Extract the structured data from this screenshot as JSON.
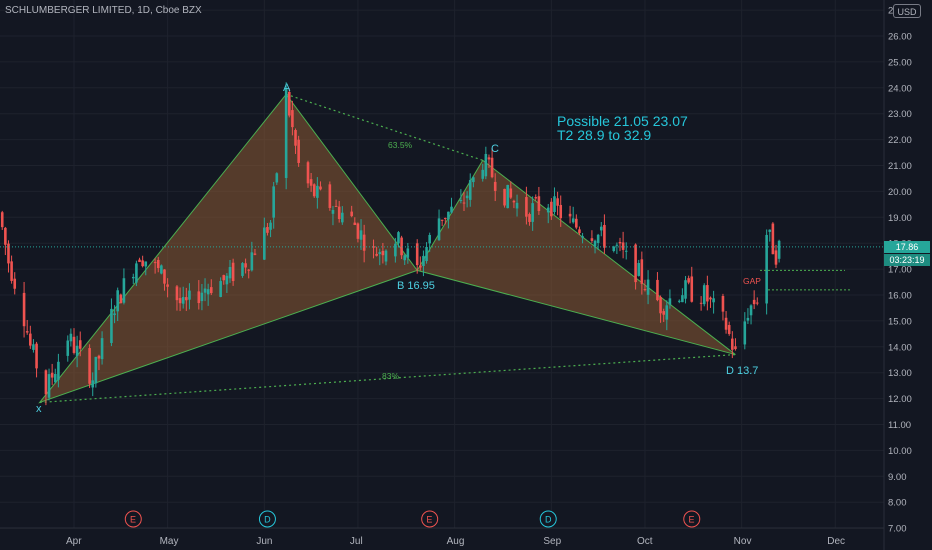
{
  "header": {
    "title": "SCHLUMBERGER LIMITED, 1D, Cboe BZX",
    "currency_label": "USD"
  },
  "price_axis": {
    "ticks": [
      "7.00",
      "8.00",
      "9.00",
      "10.00",
      "11.00",
      "12.00",
      "13.00",
      "14.00",
      "15.00",
      "16.00",
      "17.00",
      "18.00",
      "19.00",
      "20.00",
      "21.00",
      "22.00",
      "23.00",
      "24.00",
      "25.00",
      "26.00",
      "2"
    ],
    "last_price_label": "17.86",
    "countdown_label": "03:23:19"
  },
  "time_axis": {
    "ticks": [
      "Apr",
      "May",
      "Jun",
      "Jul",
      "Aug",
      "Sep",
      "Oct",
      "Nov",
      "Dec"
    ]
  },
  "events": [
    {
      "label": "E",
      "kind": "earnings"
    },
    {
      "label": "D",
      "kind": "dividend"
    },
    {
      "label": "E",
      "kind": "earnings"
    },
    {
      "label": "D",
      "kind": "dividend"
    },
    {
      "label": "E",
      "kind": "earnings"
    },
    {
      "label": "D",
      "kind": "dividend"
    }
  ],
  "pattern": {
    "points": [
      {
        "label": "X",
        "price": 11.85
      },
      {
        "label": "A",
        "price": 23.75
      },
      {
        "label": "B 16.95",
        "price": 16.95
      },
      {
        "label": "C",
        "price": 21.2
      },
      {
        "label": "D 13.7",
        "price": 13.7
      }
    ],
    "ratio_ac": "63.5%",
    "ratio_xd": "83%"
  },
  "annotations": {
    "line1": "Possible   21.05  23.07",
    "line2": "T2   28.9  to  32.9",
    "gap": "GAP"
  },
  "colors": {
    "background": "#131722",
    "bull": "#26a69a",
    "bear": "#ef5350",
    "pattern_line": "#4caf50",
    "pattern_fill": "#8d5a33",
    "note": "#26c6da"
  },
  "chart_data": {
    "type": "candlestick",
    "title": "SCHLUMBERGER LIMITED, 1D, Cboe BZX",
    "ylim": [
      7,
      27
    ],
    "price_samples": [
      {
        "x": "Mar 08",
        "price": 19.2
      },
      {
        "x": "Mar 11",
        "price": 17.3
      },
      {
        "x": "Mar 15",
        "price": 15.8
      },
      {
        "x": "Mar 18",
        "price": 14.0
      },
      {
        "x": "Mar 23",
        "price": 12.3
      },
      {
        "x": "Mar 30",
        "price": 14.4
      },
      {
        "x": "Apr 07",
        "price": 12.8
      },
      {
        "x": "Apr 14",
        "price": 15.6
      },
      {
        "x": "Apr 22",
        "price": 17.6
      },
      {
        "x": "Apr 29",
        "price": 16.8
      },
      {
        "x": "May 06",
        "price": 15.5
      },
      {
        "x": "May 13",
        "price": 16.3
      },
      {
        "x": "May 20",
        "price": 16.6
      },
      {
        "x": "May 27",
        "price": 17.4
      },
      {
        "x": "Jun 03",
        "price": 18.8
      },
      {
        "x": "Jun 08",
        "price": 23.75
      },
      {
        "x": "Jun 12",
        "price": 21.0
      },
      {
        "x": "Jun 16",
        "price": 20.0
      },
      {
        "x": "Jun 22",
        "price": 19.5
      },
      {
        "x": "Jun 29",
        "price": 18.9
      },
      {
        "x": "Jul 06",
        "price": 17.6
      },
      {
        "x": "Jul 13",
        "price": 18.2
      },
      {
        "x": "Jul 20",
        "price": 17.0
      },
      {
        "x": "Jul 27",
        "price": 19.0
      },
      {
        "x": "Aug 03",
        "price": 19.4
      },
      {
        "x": "Aug 10",
        "price": 21.2
      },
      {
        "x": "Aug 17",
        "price": 19.9
      },
      {
        "x": "Aug 24",
        "price": 19.2
      },
      {
        "x": "Aug 31",
        "price": 19.6
      },
      {
        "x": "Sep 08",
        "price": 18.7
      },
      {
        "x": "Sep 15",
        "price": 18.4
      },
      {
        "x": "Sep 22",
        "price": 17.8
      },
      {
        "x": "Sep 29",
        "price": 16.8
      },
      {
        "x": "Oct 06",
        "price": 15.6
      },
      {
        "x": "Oct 13",
        "price": 16.2
      },
      {
        "x": "Oct 20",
        "price": 16.0
      },
      {
        "x": "Oct 27",
        "price": 14.8
      },
      {
        "x": "Oct 30",
        "price": 13.7
      },
      {
        "x": "Nov 03",
        "price": 15.4
      },
      {
        "x": "Nov 06",
        "price": 15.9
      },
      {
        "x": "Nov 09",
        "price": 18.4
      },
      {
        "x": "Nov 12",
        "price": 17.6
      },
      {
        "x": "Nov 13",
        "price": 17.86
      }
    ],
    "last_price": 17.86
  }
}
